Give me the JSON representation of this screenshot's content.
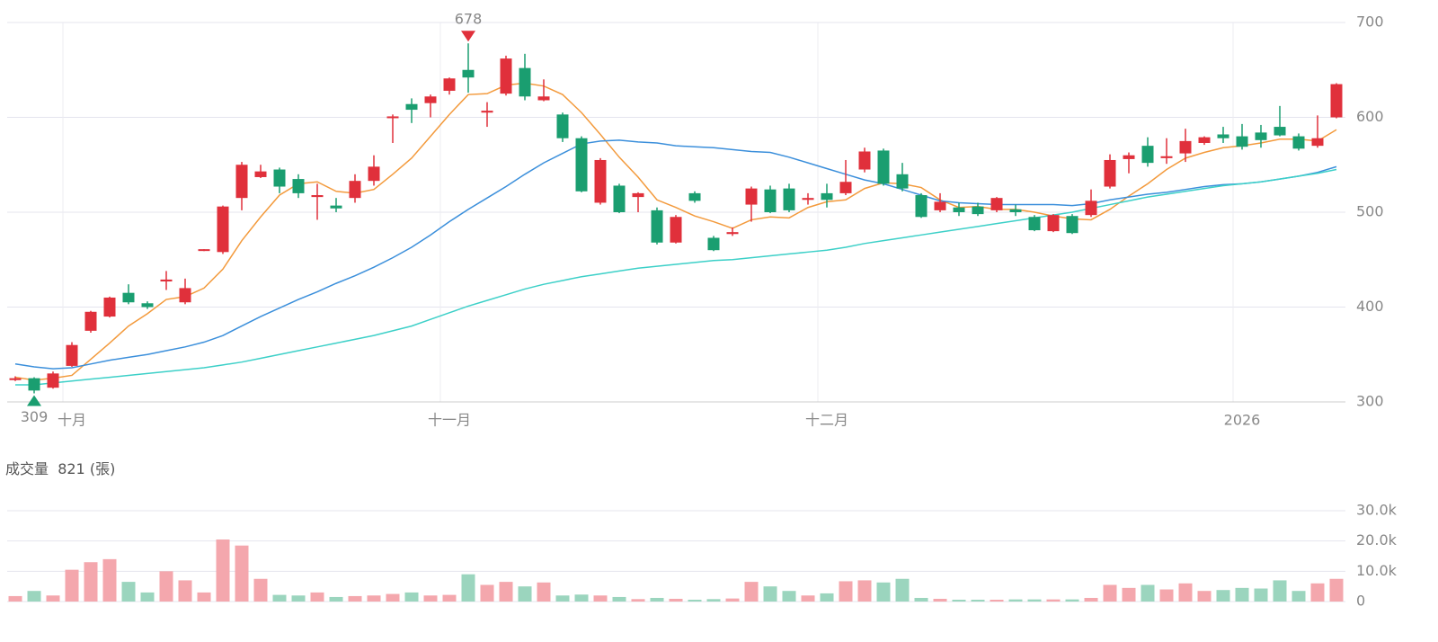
{
  "chart_data": [
    {
      "type": "candlestick",
      "categories": [
        null,
        null,
        null,
        "十月",
        null,
        null,
        null,
        null,
        null,
        null,
        null,
        null,
        null,
        null,
        null,
        null,
        null,
        null,
        null,
        null,
        null,
        null,
        null,
        "十一月",
        null,
        null,
        null,
        null,
        null,
        null,
        null,
        null,
        null,
        null,
        null,
        null,
        null,
        null,
        null,
        null,
        null,
        null,
        null,
        "十二月",
        null,
        null,
        null,
        null,
        null,
        null,
        null,
        null,
        null,
        null,
        null,
        null,
        null,
        null,
        null,
        null,
        null,
        null,
        null,
        null,
        null,
        "2026",
        null,
        null,
        null,
        null,
        null
      ],
      "open": [
        323,
        325,
        315,
        338,
        375,
        390,
        415,
        404,
        427,
        405,
        460,
        458,
        515,
        537,
        545,
        535,
        516,
        507,
        515,
        533,
        600,
        614,
        615,
        628,
        650,
        605,
        625,
        652,
        618,
        603,
        578,
        510,
        528,
        516,
        502,
        468,
        520,
        473,
        477,
        508,
        524,
        525,
        513,
        520,
        520,
        545,
        565,
        540,
        518,
        502,
        505,
        506,
        502,
        503,
        495,
        480,
        496,
        497,
        527,
        556,
        570,
        557,
        562,
        573,
        582,
        580,
        584,
        590,
        580,
        570,
        600
      ],
      "high": [
        327,
        326,
        332,
        363,
        396,
        411,
        424,
        406,
        438,
        430,
        461,
        507,
        553,
        550,
        547,
        540,
        530,
        515,
        540,
        560,
        603,
        620,
        624,
        642,
        678,
        616,
        665,
        667,
        640,
        605,
        580,
        557,
        530,
        521,
        505,
        497,
        522,
        475,
        484,
        527,
        528,
        530,
        520,
        530,
        555,
        568,
        567,
        552,
        520,
        520,
        510,
        510,
        516,
        508,
        497,
        498,
        498,
        524,
        561,
        563,
        579,
        578,
        588,
        580,
        590,
        593,
        592,
        612,
        583,
        602,
        636
      ],
      "low": [
        322,
        309,
        314,
        337,
        373,
        389,
        403,
        398,
        418,
        403,
        459,
        456,
        502,
        536,
        520,
        515,
        492,
        500,
        510,
        528,
        573,
        594,
        600,
        624,
        626,
        590,
        623,
        618,
        617,
        574,
        521,
        508,
        499,
        500,
        466,
        467,
        510,
        459,
        475,
        490,
        499,
        500,
        508,
        505,
        518,
        542,
        528,
        522,
        494,
        500,
        496,
        496,
        500,
        496,
        480,
        479,
        477,
        495,
        525,
        541,
        548,
        551,
        553,
        571,
        573,
        566,
        568,
        580,
        565,
        568,
        599
      ],
      "close": [
        325,
        312,
        330,
        360,
        395,
        410,
        405,
        400,
        429,
        420,
        461,
        506,
        550,
        543,
        527,
        520,
        518,
        504,
        533,
        548,
        601,
        608,
        622,
        641,
        642,
        607,
        662,
        622,
        622,
        578,
        522,
        555,
        500,
        520,
        468,
        495,
        512,
        460,
        479,
        525,
        500,
        502,
        515,
        513,
        532,
        564,
        530,
        525,
        495,
        511,
        500,
        498,
        515,
        500,
        481,
        497,
        478,
        512,
        555,
        560,
        552,
        559,
        575,
        579,
        578,
        569,
        576,
        581,
        567,
        578,
        635
      ],
      "up_color": "#e0303b",
      "down_color": "#1a9e70",
      "series": [
        {
          "color": "#f39a3c",
          "values": [
            326,
            323,
            325,
            328,
            345,
            362,
            380,
            393,
            408,
            411,
            420,
            440,
            470,
            495,
            518,
            530,
            532,
            522,
            520,
            524,
            540,
            557,
            580,
            603,
            624,
            625,
            634,
            636,
            633,
            624,
            605,
            582,
            558,
            537,
            513,
            505,
            496,
            490,
            483,
            492,
            495,
            494,
            505,
            511,
            513,
            525,
            531,
            530,
            526,
            513,
            505,
            506,
            503,
            503,
            500,
            496,
            493,
            492,
            503,
            517,
            530,
            545,
            557,
            563,
            568,
            570,
            573,
            577,
            577,
            575,
            587
          ]
        },
        {
          "color": "#3b8fdb",
          "values": [
            340,
            337,
            335,
            336,
            340,
            344,
            347,
            350,
            354,
            358,
            363,
            370,
            380,
            390,
            399,
            408,
            416,
            425,
            433,
            442,
            452,
            463,
            476,
            490,
            503,
            515,
            527,
            540,
            552,
            562,
            572,
            575,
            576,
            574,
            573,
            570,
            569,
            568,
            566,
            564,
            563,
            558,
            552,
            546,
            540,
            534,
            530,
            524,
            518,
            512,
            510,
            509,
            508,
            508,
            508,
            508,
            507,
            509,
            513,
            516,
            519,
            521,
            524,
            527,
            529,
            530,
            532,
            535,
            538,
            542,
            548
          ]
        },
        {
          "color": "#3dd0c8",
          "values": [
            318,
            318,
            320,
            322,
            324,
            326,
            328,
            330,
            332,
            334,
            336,
            339,
            342,
            346,
            350,
            354,
            358,
            362,
            366,
            370,
            375,
            380,
            387,
            394,
            401,
            407,
            413,
            419,
            424,
            428,
            432,
            435,
            438,
            441,
            443,
            445,
            447,
            449,
            450,
            452,
            454,
            456,
            458,
            460,
            463,
            467,
            470,
            473,
            476,
            479,
            482,
            485,
            488,
            491,
            494,
            497,
            500,
            504,
            508,
            512,
            516,
            519,
            522,
            525,
            528,
            530,
            532,
            535,
            538,
            541,
            545
          ]
        }
      ],
      "high_mark": 678,
      "low_mark": 309,
      "ylim": [
        300,
        700
      ],
      "yticks": [
        300,
        400,
        500,
        600,
        700
      ],
      "grid": true
    },
    {
      "type": "bar",
      "title": "成交量",
      "current": 821,
      "unit": "(張)",
      "up_color": "#f4a7ad",
      "down_color": "#9bd5be",
      "values": [
        1800,
        3500,
        2000,
        10500,
        13000,
        14000,
        6500,
        3000,
        10000,
        7000,
        3000,
        20500,
        18500,
        7500,
        2200,
        2000,
        3000,
        1500,
        1800,
        2000,
        2500,
        3000,
        2000,
        2200,
        9000,
        5500,
        6500,
        5000,
        6300,
        2000,
        2300,
        2000,
        1500,
        800,
        1200,
        900,
        600,
        800,
        1000,
        6500,
        5000,
        3500,
        2000,
        2700,
        6700,
        7000,
        6300,
        7500,
        1200,
        900,
        600,
        600,
        600,
        700,
        700,
        700,
        700,
        1200,
        5500,
        4500,
        5500,
        4000,
        6000,
        3500,
        3800,
        4500,
        4300,
        7000,
        3500,
        6000,
        7500
      ],
      "ylim": [
        0,
        30000
      ],
      "yticks": [
        {
          "value": 0,
          "label": "0"
        },
        {
          "value": 10000,
          "label": "10.0k"
        },
        {
          "value": 20000,
          "label": "20.0k"
        },
        {
          "value": 30000,
          "label": "30.0k"
        }
      ],
      "grid": true
    }
  ]
}
